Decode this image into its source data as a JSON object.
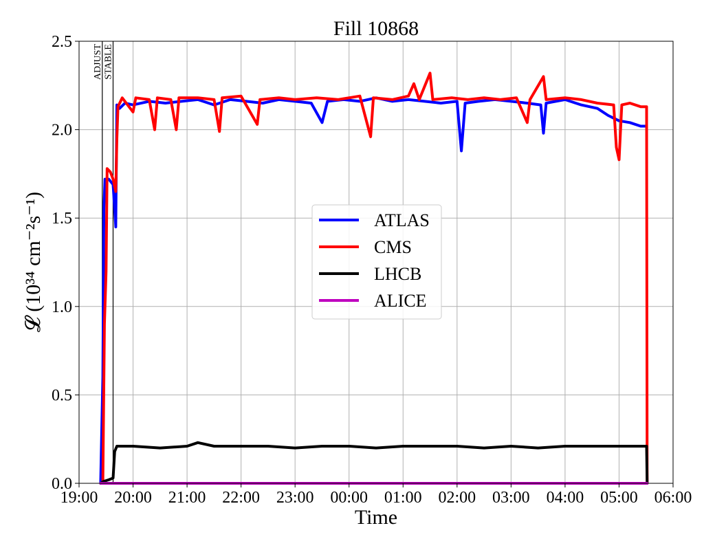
{
  "chart_data": {
    "type": "line",
    "title": "Fill 10868",
    "xlabel": "Time",
    "ylabel": "𝓛 (10³⁴ cm⁻²s⁻¹)",
    "x_unit": "hours",
    "xlim": [
      19.0,
      30.0
    ],
    "ylim": [
      0.0,
      2.5
    ],
    "x_ticks": [
      {
        "value": 19,
        "label": "19:00"
      },
      {
        "value": 20,
        "label": "20:00"
      },
      {
        "value": 21,
        "label": "21:00"
      },
      {
        "value": 22,
        "label": "22:00"
      },
      {
        "value": 23,
        "label": "23:00"
      },
      {
        "value": 24,
        "label": "00:00"
      },
      {
        "value": 25,
        "label": "01:00"
      },
      {
        "value": 26,
        "label": "02:00"
      },
      {
        "value": 27,
        "label": "03:00"
      },
      {
        "value": 28,
        "label": "04:00"
      },
      {
        "value": 29,
        "label": "05:00"
      },
      {
        "value": 30,
        "label": "06:00"
      }
    ],
    "y_ticks": [
      {
        "value": 0.0,
        "label": "0.0"
      },
      {
        "value": 0.5,
        "label": "0.5"
      },
      {
        "value": 1.0,
        "label": "1.0"
      },
      {
        "value": 1.5,
        "label": "1.5"
      },
      {
        "value": 2.0,
        "label": "2.0"
      },
      {
        "value": 2.5,
        "label": "2.5"
      }
    ],
    "grid": true,
    "legend_position": "center",
    "phase_markers": [
      {
        "x": 19.43,
        "label": "ADJUST"
      },
      {
        "x": 19.63,
        "label": "STABLE"
      }
    ],
    "series": [
      {
        "name": "ATLAS",
        "color": "#0000ff",
        "points": [
          [
            19.4,
            0.0
          ],
          [
            19.44,
            0.6
          ],
          [
            19.46,
            1.55
          ],
          [
            19.48,
            1.72
          ],
          [
            19.55,
            1.72
          ],
          [
            19.63,
            1.69
          ],
          [
            19.68,
            1.45
          ],
          [
            19.7,
            2.14
          ],
          [
            19.75,
            2.12
          ],
          [
            19.85,
            2.15
          ],
          [
            20.0,
            2.14
          ],
          [
            20.3,
            2.16
          ],
          [
            20.6,
            2.15
          ],
          [
            20.9,
            2.16
          ],
          [
            21.2,
            2.17
          ],
          [
            21.5,
            2.14
          ],
          [
            21.8,
            2.17
          ],
          [
            22.1,
            2.16
          ],
          [
            22.4,
            2.15
          ],
          [
            22.7,
            2.17
          ],
          [
            23.0,
            2.16
          ],
          [
            23.3,
            2.15
          ],
          [
            23.5,
            2.04
          ],
          [
            23.6,
            2.16
          ],
          [
            23.9,
            2.17
          ],
          [
            24.2,
            2.16
          ],
          [
            24.5,
            2.18
          ],
          [
            24.8,
            2.16
          ],
          [
            25.1,
            2.17
          ],
          [
            25.4,
            2.16
          ],
          [
            25.7,
            2.15
          ],
          [
            26.0,
            2.16
          ],
          [
            26.08,
            1.88
          ],
          [
            26.15,
            2.15
          ],
          [
            26.4,
            2.16
          ],
          [
            26.7,
            2.17
          ],
          [
            27.0,
            2.16
          ],
          [
            27.3,
            2.15
          ],
          [
            27.55,
            2.14
          ],
          [
            27.6,
            1.98
          ],
          [
            27.65,
            2.15
          ],
          [
            28.0,
            2.17
          ],
          [
            28.3,
            2.14
          ],
          [
            28.6,
            2.12
          ],
          [
            28.8,
            2.08
          ],
          [
            29.0,
            2.05
          ],
          [
            29.2,
            2.04
          ],
          [
            29.4,
            2.02
          ],
          [
            29.5,
            2.02
          ]
        ]
      },
      {
        "name": "CMS",
        "color": "#ff0000",
        "points": [
          [
            19.44,
            0.0
          ],
          [
            19.47,
            0.9
          ],
          [
            19.5,
            1.2
          ],
          [
            19.52,
            1.78
          ],
          [
            19.58,
            1.76
          ],
          [
            19.63,
            1.72
          ],
          [
            19.68,
            1.65
          ],
          [
            19.7,
            1.95
          ],
          [
            19.72,
            2.13
          ],
          [
            19.8,
            2.18
          ],
          [
            20.0,
            2.1
          ],
          [
            20.05,
            2.18
          ],
          [
            20.3,
            2.17
          ],
          [
            20.4,
            2.0
          ],
          [
            20.45,
            2.18
          ],
          [
            20.7,
            2.17
          ],
          [
            20.8,
            2.0
          ],
          [
            20.85,
            2.18
          ],
          [
            21.2,
            2.18
          ],
          [
            21.5,
            2.17
          ],
          [
            21.6,
            1.99
          ],
          [
            21.65,
            2.18
          ],
          [
            22.0,
            2.19
          ],
          [
            22.3,
            2.03
          ],
          [
            22.35,
            2.17
          ],
          [
            22.7,
            2.18
          ],
          [
            23.0,
            2.17
          ],
          [
            23.4,
            2.18
          ],
          [
            23.8,
            2.17
          ],
          [
            24.2,
            2.19
          ],
          [
            24.4,
            1.96
          ],
          [
            24.45,
            2.18
          ],
          [
            24.8,
            2.17
          ],
          [
            25.1,
            2.19
          ],
          [
            25.2,
            2.26
          ],
          [
            25.3,
            2.17
          ],
          [
            25.5,
            2.32
          ],
          [
            25.55,
            2.17
          ],
          [
            25.9,
            2.18
          ],
          [
            26.2,
            2.17
          ],
          [
            26.5,
            2.18
          ],
          [
            26.8,
            2.17
          ],
          [
            27.1,
            2.18
          ],
          [
            27.3,
            2.04
          ],
          [
            27.35,
            2.17
          ],
          [
            27.6,
            2.3
          ],
          [
            27.65,
            2.17
          ],
          [
            28.0,
            2.18
          ],
          [
            28.3,
            2.17
          ],
          [
            28.6,
            2.15
          ],
          [
            28.9,
            2.14
          ],
          [
            28.95,
            1.9
          ],
          [
            29.0,
            1.83
          ],
          [
            29.05,
            2.14
          ],
          [
            29.2,
            2.15
          ],
          [
            29.4,
            2.13
          ],
          [
            29.51,
            2.13
          ],
          [
            29.52,
            0.0
          ]
        ]
      },
      {
        "name": "LHCB",
        "color": "#000000",
        "points": [
          [
            19.4,
            0.0
          ],
          [
            19.45,
            0.01
          ],
          [
            19.55,
            0.02
          ],
          [
            19.63,
            0.03
          ],
          [
            19.66,
            0.18
          ],
          [
            19.7,
            0.21
          ],
          [
            20.0,
            0.21
          ],
          [
            20.5,
            0.2
          ],
          [
            21.0,
            0.21
          ],
          [
            21.2,
            0.23
          ],
          [
            21.5,
            0.21
          ],
          [
            22.0,
            0.21
          ],
          [
            22.5,
            0.21
          ],
          [
            23.0,
            0.2
          ],
          [
            23.5,
            0.21
          ],
          [
            24.0,
            0.21
          ],
          [
            24.5,
            0.2
          ],
          [
            25.0,
            0.21
          ],
          [
            25.5,
            0.21
          ],
          [
            26.0,
            0.21
          ],
          [
            26.5,
            0.2
          ],
          [
            27.0,
            0.21
          ],
          [
            27.5,
            0.2
          ],
          [
            28.0,
            0.21
          ],
          [
            28.5,
            0.21
          ],
          [
            29.0,
            0.21
          ],
          [
            29.51,
            0.21
          ],
          [
            29.52,
            0.0
          ]
        ]
      },
      {
        "name": "ALICE",
        "color": "#bf00bf",
        "points": [
          [
            19.4,
            0.0
          ],
          [
            29.52,
            0.0
          ]
        ]
      }
    ]
  }
}
